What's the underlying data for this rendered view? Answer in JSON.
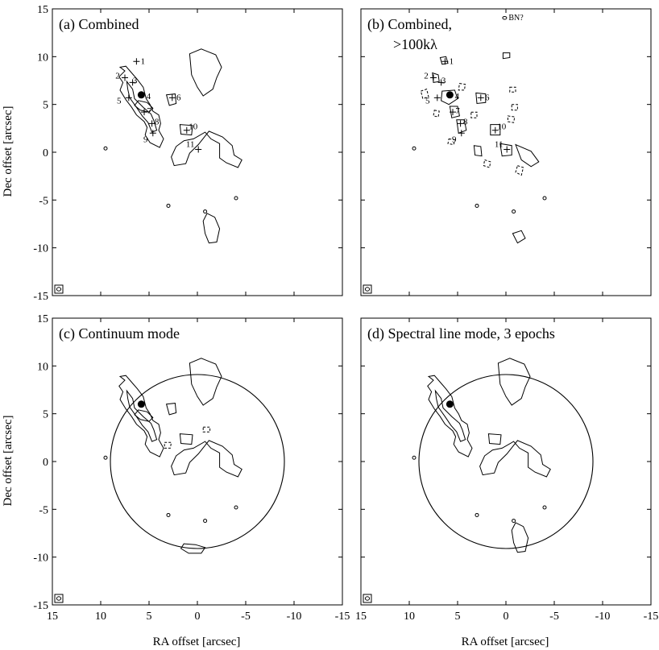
{
  "figure": {
    "xlabel": "RA offset [arcsec]",
    "ylabel": "Dec offset [arcsec]",
    "xlim": [
      15,
      -15
    ],
    "ylim": [
      -15,
      15
    ],
    "ticks": [
      15,
      10,
      5,
      0,
      -5,
      -10,
      -15
    ],
    "beam_marker": "beam-icon",
    "color": "#000000"
  },
  "panels": [
    {
      "id": "a",
      "title": "(a) Combined",
      "title2": "",
      "ring": null,
      "sources": [
        {
          "label": "1",
          "ra": 6.3,
          "dec": 9.5
        },
        {
          "label": "2",
          "ra": 7.5,
          "dec": 7.8
        },
        {
          "label": "3",
          "ra": 6.7,
          "dec": 7.3
        },
        {
          "label": "4",
          "ra": 5.8,
          "dec": 6.0
        },
        {
          "label": "5",
          "ra": 7.1,
          "dec": 5.7
        },
        {
          "label": "6",
          "ra": 2.6,
          "dec": 5.7
        },
        {
          "label": "7",
          "ra": 5.5,
          "dec": 4.2
        },
        {
          "label": "8",
          "ra": 4.7,
          "dec": 3.0
        },
        {
          "label": "9",
          "ra": 4.6,
          "dec": 2.0
        },
        {
          "label": "10",
          "ra": 1.1,
          "dec": 2.3
        },
        {
          "label": "11",
          "ra": -0.1,
          "dec": 0.3
        }
      ],
      "notes": []
    },
    {
      "id": "b",
      "title": "(b) Combined,",
      "title2": ">100kλ",
      "ring": null,
      "sources": [
        {
          "label": "1",
          "ra": 6.3,
          "dec": 9.5
        },
        {
          "label": "2",
          "ra": 7.5,
          "dec": 7.8
        },
        {
          "label": "3",
          "ra": 6.7,
          "dec": 7.3
        },
        {
          "label": "4",
          "ra": 5.8,
          "dec": 6.0
        },
        {
          "label": "5",
          "ra": 7.1,
          "dec": 5.7
        },
        {
          "label": "6",
          "ra": 2.6,
          "dec": 5.7
        },
        {
          "label": "7",
          "ra": 5.5,
          "dec": 4.2
        },
        {
          "label": "8",
          "ra": 4.7,
          "dec": 3.0
        },
        {
          "label": "9",
          "ra": 4.6,
          "dec": 2.0
        },
        {
          "label": "10",
          "ra": 1.1,
          "dec": 2.3
        },
        {
          "label": "11",
          "ra": -0.1,
          "dec": 0.3
        }
      ],
      "notes": [
        {
          "text": "BN?",
          "ra": -0.2,
          "dec": 13.8
        }
      ]
    },
    {
      "id": "c",
      "title": "(c) Continuum mode",
      "title2": "",
      "ring": {
        "ra": 0,
        "dec": 0,
        "radius": 9.0
      },
      "sources": [],
      "notes": []
    },
    {
      "id": "d",
      "title": "(d) Spectral line mode, 3 epochs",
      "title2": "",
      "ring": {
        "ra": 0,
        "dec": 0,
        "radius": 9.0
      },
      "sources": [],
      "notes": []
    }
  ]
}
